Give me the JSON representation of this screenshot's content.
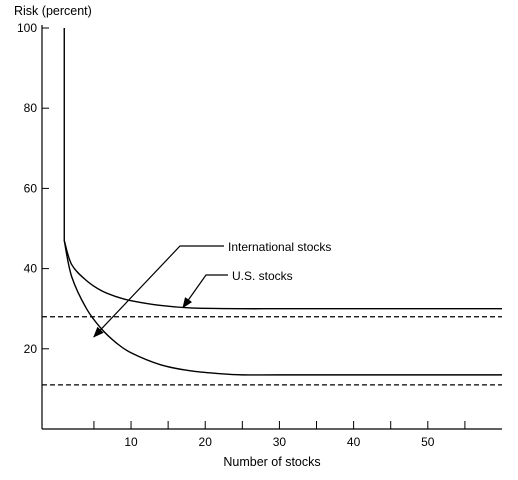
{
  "chart_data": {
    "type": "line",
    "title": "",
    "xlabel": "Number of stocks",
    "ylabel": "Risk (percent)",
    "xlim": [
      -2,
      60
    ],
    "ylim": [
      0,
      100
    ],
    "x_tick_labels": [
      "10",
      "20",
      "30",
      "40",
      "50"
    ],
    "x_ticks_minor": [
      5,
      15,
      25,
      35,
      45,
      55
    ],
    "y_tick_labels": [
      "20",
      "40",
      "60",
      "80",
      "100"
    ],
    "grid": false,
    "series": [
      {
        "name": "U.S. stocks",
        "style": "solid",
        "x": [
          1,
          1,
          2,
          4,
          6,
          8,
          10,
          14,
          18,
          25,
          30,
          40,
          50,
          60
        ],
        "y": [
          100,
          47,
          41,
          37,
          34.5,
          33,
          32,
          30.8,
          30.2,
          30,
          30,
          30,
          30,
          30
        ]
      },
      {
        "name": "International stocks",
        "style": "solid",
        "x": [
          1,
          2,
          4,
          6,
          8,
          10,
          14,
          18,
          22,
          25,
          30,
          40,
          50,
          60
        ],
        "y": [
          47,
          38,
          30,
          25,
          21.5,
          19,
          16,
          14.5,
          13.8,
          13.5,
          13.5,
          13.5,
          13.5,
          13.5
        ]
      }
    ],
    "reference_lines": [
      {
        "style": "dashed",
        "y": 28
      },
      {
        "style": "dashed",
        "y": 11
      }
    ],
    "annotations": [
      {
        "text": "International stocks",
        "target": {
          "x": 5,
          "y": 23
        }
      },
      {
        "text": "U.S. stocks",
        "target": {
          "x": 17,
          "y": 30.3
        }
      }
    ]
  }
}
